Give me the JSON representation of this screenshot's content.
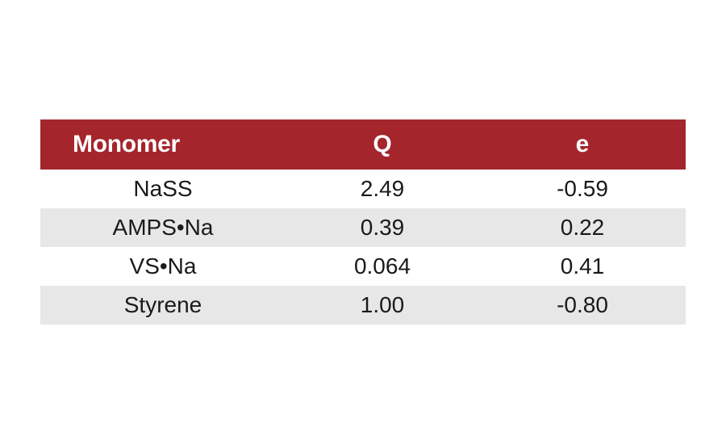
{
  "table": {
    "type": "table",
    "columns": [
      {
        "key": "monomer",
        "label": "Monomer",
        "align": "center",
        "width_pct": 38
      },
      {
        "key": "q",
        "label": "Q",
        "align": "center",
        "width_pct": 30
      },
      {
        "key": "e",
        "label": "e",
        "align": "center",
        "width_pct": 32
      }
    ],
    "rows": [
      {
        "monomer": "NaSS",
        "q": "2.49",
        "e": "-0.59"
      },
      {
        "monomer": "AMPS•Na",
        "q": "0.39",
        "e": "0.22"
      },
      {
        "monomer": "VS•Na",
        "q": "0.064",
        "e": "0.41"
      },
      {
        "monomer": "Styrene",
        "q": "1.00",
        "e": "-0.80"
      }
    ],
    "header_bg": "#a4252c",
    "header_fg": "#ffffff",
    "row_bg": "#ffffff",
    "row_alt_bg": "#e7e7e7",
    "text_color": "#1a1a1a",
    "header_fontsize_pt": 22,
    "cell_fontsize_pt": 21,
    "header_fontweight": 700,
    "cell_fontweight": 400,
    "stripe_start_index": 1
  }
}
